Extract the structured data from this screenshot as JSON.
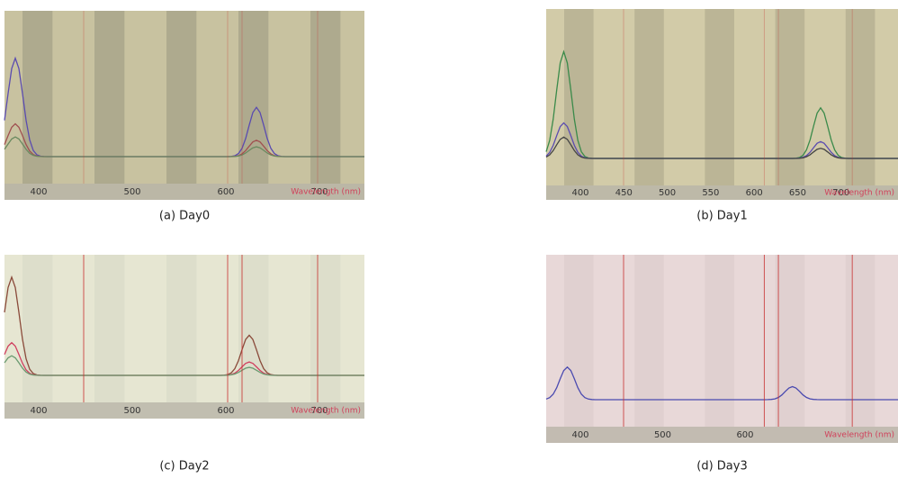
{
  "panels": [
    {
      "caption": "(a) Day0",
      "xticks": [
        "400",
        "500",
        "600",
        "700"
      ],
      "axis_title": "Wavelength (nm)"
    },
    {
      "caption": "(b) Day1",
      "xticks": [
        "400",
        "450",
        "500",
        "550",
        "600",
        "650",
        "700"
      ],
      "axis_title": "Wavelength (nm)"
    },
    {
      "caption": "(c) Day2",
      "xticks": [
        "400",
        "500",
        "600",
        "700"
      ],
      "axis_title": "Wavelength (nm)"
    },
    {
      "caption": "(d) Day3",
      "xticks": [
        "400",
        "500",
        "600"
      ],
      "axis_title": "Wavelength (nm)"
    }
  ]
}
